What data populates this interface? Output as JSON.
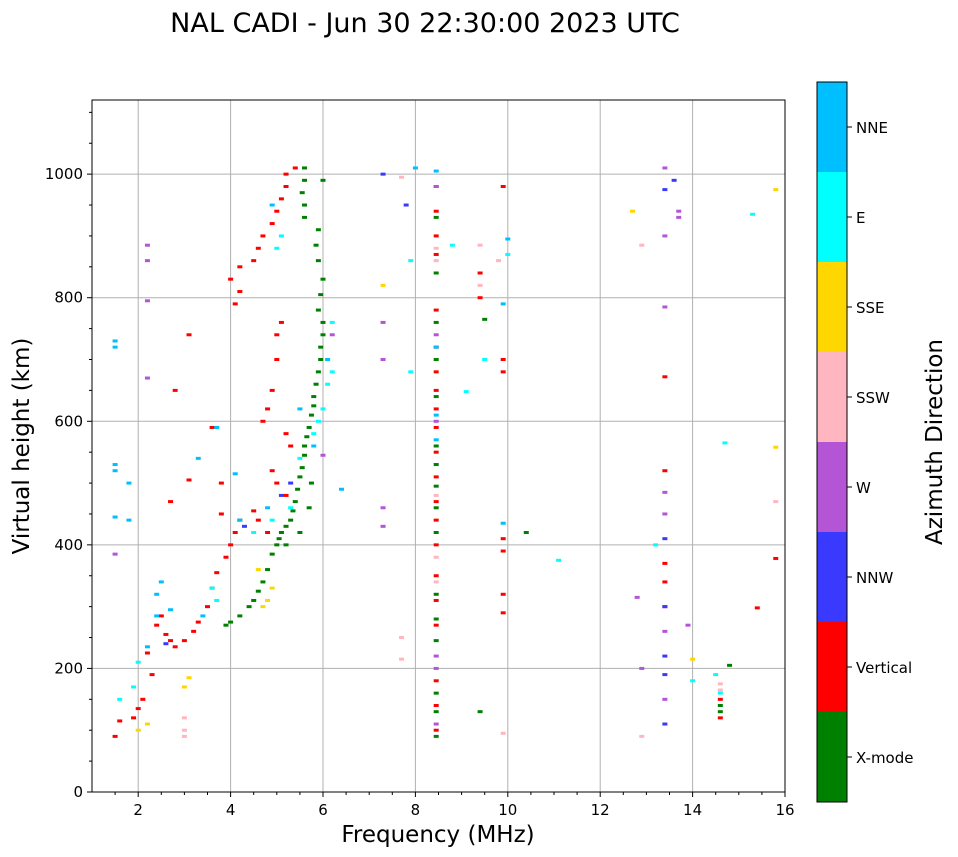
{
  "chart_data": {
    "type": "scatter",
    "title": "NAL CADI - Jun 30 22:30:00 2023 UTC",
    "xlabel": "Frequency (MHz)",
    "ylabel": "Virtual height (km)",
    "xlim": [
      1,
      16
    ],
    "ylim": [
      0,
      1120
    ],
    "xticks": [
      2,
      4,
      6,
      8,
      10,
      12,
      14,
      16
    ],
    "yticks": [
      0,
      200,
      400,
      600,
      800,
      1000
    ],
    "grid": true,
    "colorbar": {
      "label": "Azimuth Direction",
      "categories": [
        {
          "name": "X-mode",
          "color": "#008000"
        },
        {
          "name": "Vertical",
          "color": "#ff0000"
        },
        {
          "name": "NNW",
          "color": "#3a3aff"
        },
        {
          "name": "W",
          "color": "#b455d6"
        },
        {
          "name": "SSW",
          "color": "#ffb6c1"
        },
        {
          "name": "SSE",
          "color": "#ffd700"
        },
        {
          "name": "E",
          "color": "#00ffff"
        },
        {
          "name": "NNE",
          "color": "#00bfff"
        }
      ]
    },
    "series": [
      {
        "name": "X-mode",
        "points": [
          [
            3.9,
            270
          ],
          [
            4.0,
            275
          ],
          [
            4.2,
            285
          ],
          [
            4.4,
            300
          ],
          [
            4.5,
            310
          ],
          [
            4.6,
            325
          ],
          [
            4.7,
            340
          ],
          [
            4.8,
            360
          ],
          [
            4.9,
            385
          ],
          [
            5.0,
            400
          ],
          [
            5.05,
            410
          ],
          [
            5.1,
            420
          ],
          [
            5.2,
            430
          ],
          [
            5.3,
            440
          ],
          [
            5.35,
            455
          ],
          [
            5.4,
            470
          ],
          [
            5.45,
            490
          ],
          [
            5.5,
            510
          ],
          [
            5.55,
            525
          ],
          [
            5.6,
            545
          ],
          [
            5.6,
            560
          ],
          [
            5.65,
            575
          ],
          [
            5.7,
            590
          ],
          [
            5.75,
            610
          ],
          [
            5.8,
            625
          ],
          [
            5.8,
            640
          ],
          [
            5.85,
            660
          ],
          [
            5.9,
            680
          ],
          [
            5.95,
            700
          ],
          [
            5.95,
            720
          ],
          [
            6.0,
            740
          ],
          [
            6.0,
            760
          ],
          [
            5.9,
            780
          ],
          [
            5.95,
            805
          ],
          [
            6.0,
            830
          ],
          [
            5.9,
            860
          ],
          [
            5.85,
            885
          ],
          [
            5.9,
            910
          ],
          [
            5.6,
            930
          ],
          [
            5.6,
            950
          ],
          [
            5.55,
            970
          ],
          [
            5.6,
            990
          ],
          [
            5.6,
            1010
          ],
          [
            6.0,
            990
          ],
          [
            5.2,
            400
          ],
          [
            5.5,
            420
          ],
          [
            5.7,
            460
          ],
          [
            5.75,
            500
          ],
          [
            8.45,
            90
          ],
          [
            8.45,
            130
          ],
          [
            8.45,
            160
          ],
          [
            8.45,
            245
          ],
          [
            8.45,
            280
          ],
          [
            8.45,
            320
          ],
          [
            8.45,
            420
          ],
          [
            8.45,
            460
          ],
          [
            8.45,
            495
          ],
          [
            8.45,
            530
          ],
          [
            8.45,
            560
          ],
          [
            8.45,
            640
          ],
          [
            8.45,
            700
          ],
          [
            8.45,
            760
          ],
          [
            8.45,
            840
          ],
          [
            8.45,
            930
          ],
          [
            9.4,
            130
          ],
          [
            9.5,
            765
          ],
          [
            10.4,
            420
          ],
          [
            14.6,
            130
          ],
          [
            14.6,
            140
          ],
          [
            14.8,
            205
          ]
        ]
      },
      {
        "name": "Vertical",
        "points": [
          [
            1.5,
            90
          ],
          [
            1.6,
            115
          ],
          [
            1.9,
            120
          ],
          [
            2.0,
            135
          ],
          [
            2.1,
            150
          ],
          [
            2.3,
            190
          ],
          [
            2.2,
            225
          ],
          [
            2.4,
            270
          ],
          [
            2.5,
            285
          ],
          [
            2.6,
            255
          ],
          [
            2.7,
            245
          ],
          [
            2.8,
            235
          ],
          [
            3.0,
            245
          ],
          [
            3.2,
            260
          ],
          [
            3.3,
            275
          ],
          [
            3.5,
            300
          ],
          [
            3.6,
            330
          ],
          [
            3.7,
            355
          ],
          [
            3.9,
            380
          ],
          [
            4.0,
            400
          ],
          [
            4.1,
            420
          ],
          [
            4.2,
            440
          ],
          [
            4.5,
            455
          ],
          [
            4.6,
            440
          ],
          [
            4.8,
            420
          ],
          [
            3.8,
            450
          ],
          [
            3.8,
            500
          ],
          [
            3.1,
            505
          ],
          [
            2.7,
            470
          ],
          [
            3.1,
            740
          ],
          [
            2.8,
            650
          ],
          [
            3.6,
            590
          ],
          [
            4.1,
            790
          ],
          [
            4.2,
            810
          ],
          [
            4.0,
            830
          ],
          [
            4.2,
            850
          ],
          [
            4.5,
            860
          ],
          [
            4.6,
            880
          ],
          [
            4.7,
            900
          ],
          [
            4.9,
            920
          ],
          [
            5.0,
            940
          ],
          [
            5.1,
            960
          ],
          [
            5.2,
            980
          ],
          [
            5.2,
            1000
          ],
          [
            5.4,
            1010
          ],
          [
            5.0,
            740
          ],
          [
            5.1,
            760
          ],
          [
            5.0,
            700
          ],
          [
            4.9,
            650
          ],
          [
            4.8,
            620
          ],
          [
            4.7,
            600
          ],
          [
            5.2,
            580
          ],
          [
            5.3,
            560
          ],
          [
            4.9,
            520
          ],
          [
            5.0,
            500
          ],
          [
            5.2,
            480
          ],
          [
            8.45,
            100
          ],
          [
            8.45,
            140
          ],
          [
            8.45,
            180
          ],
          [
            8.45,
            270
          ],
          [
            8.45,
            310
          ],
          [
            8.45,
            350
          ],
          [
            8.45,
            400
          ],
          [
            8.45,
            440
          ],
          [
            8.45,
            470
          ],
          [
            8.45,
            510
          ],
          [
            8.45,
            550
          ],
          [
            8.45,
            590
          ],
          [
            8.45,
            620
          ],
          [
            8.45,
            650
          ],
          [
            8.45,
            680
          ],
          [
            8.45,
            720
          ],
          [
            8.45,
            780
          ],
          [
            8.45,
            870
          ],
          [
            8.45,
            900
          ],
          [
            8.45,
            940
          ],
          [
            8.45,
            980
          ],
          [
            9.4,
            800
          ],
          [
            9.4,
            840
          ],
          [
            9.9,
            290
          ],
          [
            9.9,
            320
          ],
          [
            9.9,
            390
          ],
          [
            9.9,
            410
          ],
          [
            9.9,
            700
          ],
          [
            9.9,
            680
          ],
          [
            9.9,
            980
          ],
          [
            13.4,
            300
          ],
          [
            13.4,
            340
          ],
          [
            13.4,
            370
          ],
          [
            13.4,
            520
          ],
          [
            13.4,
            672
          ],
          [
            15.4,
            298
          ],
          [
            15.8,
            378
          ],
          [
            14.6,
            150
          ],
          [
            14.6,
            120
          ]
        ]
      },
      {
        "name": "NNW",
        "points": [
          [
            2.6,
            240
          ],
          [
            4.3,
            430
          ],
          [
            5.1,
            480
          ],
          [
            5.3,
            500
          ],
          [
            7.3,
            1000
          ],
          [
            7.8,
            950
          ],
          [
            13.4,
            110
          ],
          [
            13.4,
            190
          ],
          [
            13.4,
            220
          ],
          [
            13.4,
            300
          ],
          [
            13.4,
            410
          ],
          [
            13.4,
            975
          ],
          [
            13.6,
            990
          ]
        ]
      },
      {
        "name": "W",
        "points": [
          [
            1.5,
            385
          ],
          [
            2.2,
            885
          ],
          [
            2.2,
            860
          ],
          [
            2.2,
            795
          ],
          [
            2.2,
            670
          ],
          [
            7.3,
            460
          ],
          [
            7.3,
            430
          ],
          [
            7.3,
            700
          ],
          [
            7.3,
            760
          ],
          [
            8.45,
            110
          ],
          [
            8.45,
            200
          ],
          [
            8.45,
            220
          ],
          [
            8.45,
            600
          ],
          [
            8.45,
            740
          ],
          [
            8.45,
            980
          ],
          [
            12.8,
            315
          ],
          [
            13.4,
            150
          ],
          [
            13.4,
            260
          ],
          [
            13.4,
            450
          ],
          [
            13.4,
            485
          ],
          [
            13.4,
            785
          ],
          [
            13.4,
            900
          ],
          [
            13.4,
            1010
          ],
          [
            13.7,
            940
          ],
          [
            13.7,
            930
          ],
          [
            13.9,
            270
          ],
          [
            12.9,
            200
          ],
          [
            6.0,
            545
          ],
          [
            6.2,
            740
          ]
        ]
      },
      {
        "name": "SSW",
        "points": [
          [
            3.0,
            100
          ],
          [
            3.0,
            90
          ],
          [
            3.0,
            120
          ],
          [
            7.7,
            250
          ],
          [
            7.7,
            215
          ],
          [
            7.7,
            995
          ],
          [
            9.4,
            885
          ],
          [
            9.4,
            820
          ],
          [
            9.8,
            860
          ],
          [
            9.9,
            95
          ],
          [
            12.9,
            90
          ],
          [
            12.9,
            885
          ],
          [
            14.6,
            165
          ],
          [
            14.6,
            175
          ],
          [
            15.8,
            470
          ],
          [
            8.45,
            860
          ],
          [
            8.45,
            880
          ],
          [
            8.45,
            480
          ],
          [
            8.45,
            380
          ],
          [
            8.45,
            340
          ]
        ]
      },
      {
        "name": "SSE",
        "points": [
          [
            2.0,
            100
          ],
          [
            2.2,
            110
          ],
          [
            3.0,
            170
          ],
          [
            3.1,
            185
          ],
          [
            4.6,
            360
          ],
          [
            4.7,
            300
          ],
          [
            4.8,
            310
          ],
          [
            4.9,
            330
          ],
          [
            7.3,
            820
          ],
          [
            12.7,
            940
          ],
          [
            14.0,
            215
          ],
          [
            15.8,
            975
          ],
          [
            15.8,
            558
          ]
        ]
      },
      {
        "name": "E",
        "points": [
          [
            1.6,
            150
          ],
          [
            1.9,
            170
          ],
          [
            2.0,
            210
          ],
          [
            3.6,
            330
          ],
          [
            3.7,
            310
          ],
          [
            4.5,
            420
          ],
          [
            4.9,
            440
          ],
          [
            5.3,
            460
          ],
          [
            5.5,
            540
          ],
          [
            5.8,
            580
          ],
          [
            5.9,
            600
          ],
          [
            6.0,
            620
          ],
          [
            6.1,
            660
          ],
          [
            6.2,
            680
          ],
          [
            5.0,
            880
          ],
          [
            5.1,
            900
          ],
          [
            7.9,
            860
          ],
          [
            7.9,
            680
          ],
          [
            8.8,
            885
          ],
          [
            9.1,
            648
          ],
          [
            9.5,
            700
          ],
          [
            10.0,
            870
          ],
          [
            11.1,
            375
          ],
          [
            13.2,
            400
          ],
          [
            14.0,
            180
          ],
          [
            14.5,
            190
          ],
          [
            14.6,
            160
          ],
          [
            15.3,
            935
          ],
          [
            14.7,
            565
          ],
          [
            6.2,
            760
          ]
        ]
      },
      {
        "name": "NNE",
        "points": [
          [
            1.5,
            730
          ],
          [
            1.5,
            720
          ],
          [
            1.5,
            530
          ],
          [
            1.5,
            520
          ],
          [
            1.5,
            445
          ],
          [
            1.8,
            500
          ],
          [
            1.8,
            440
          ],
          [
            2.4,
            320
          ],
          [
            2.5,
            340
          ],
          [
            2.7,
            295
          ],
          [
            3.4,
            285
          ],
          [
            3.3,
            540
          ],
          [
            3.7,
            590
          ],
          [
            4.1,
            515
          ],
          [
            4.2,
            440
          ],
          [
            4.8,
            460
          ],
          [
            4.9,
            950
          ],
          [
            5.5,
            620
          ],
          [
            5.8,
            560
          ],
          [
            6.1,
            700
          ],
          [
            6.4,
            490
          ],
          [
            8.45,
            1005
          ],
          [
            8.45,
            610
          ],
          [
            8.45,
            570
          ],
          [
            8.45,
            720
          ],
          [
            9.9,
            435
          ],
          [
            9.9,
            790
          ],
          [
            10.0,
            895
          ],
          [
            8.0,
            1010
          ],
          [
            2.4,
            285
          ],
          [
            2.2,
            235
          ]
        ]
      }
    ]
  }
}
